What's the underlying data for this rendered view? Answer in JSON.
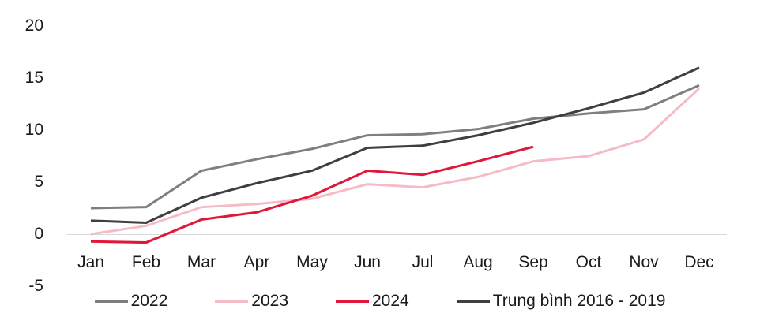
{
  "chart_data": {
    "type": "line",
    "title": "",
    "xlabel": "",
    "ylabel": "",
    "categories": [
      "Jan",
      "Feb",
      "Mar",
      "Apr",
      "May",
      "Jun",
      "Jul",
      "Aug",
      "Sep",
      "Oct",
      "Nov",
      "Dec"
    ],
    "y_tick_labels": [
      "20",
      "15",
      "10",
      "5",
      "0",
      "-5"
    ],
    "y_ticks": [
      20,
      15,
      10,
      5,
      0,
      -5
    ],
    "ylim": [
      -5,
      20
    ],
    "grid": "zero-line-only",
    "legend_position": "bottom",
    "series": [
      {
        "name": "2022",
        "color": "#7f7f7f",
        "values": [
          2.5,
          2.6,
          6.1,
          7.2,
          8.2,
          9.5,
          9.6,
          10.1,
          11.1,
          11.6,
          12.0,
          14.3
        ]
      },
      {
        "name": "2023",
        "color": "#f6bcc6",
        "values": [
          0.0,
          0.8,
          2.6,
          2.9,
          3.4,
          4.8,
          4.5,
          5.5,
          7.0,
          7.5,
          9.1,
          14.0
        ]
      },
      {
        "name": "2024",
        "color": "#e0173a",
        "values": [
          -0.7,
          -0.8,
          1.4,
          2.1,
          3.7,
          6.1,
          5.7,
          7.0,
          8.4,
          null,
          null,
          null
        ]
      },
      {
        "name": "Trung bình 2016 - 2019",
        "color": "#3f3f3f",
        "values": [
          1.3,
          1.1,
          3.5,
          4.9,
          6.1,
          8.3,
          8.5,
          9.5,
          10.7,
          12.1,
          13.6,
          16.0
        ]
      }
    ]
  }
}
